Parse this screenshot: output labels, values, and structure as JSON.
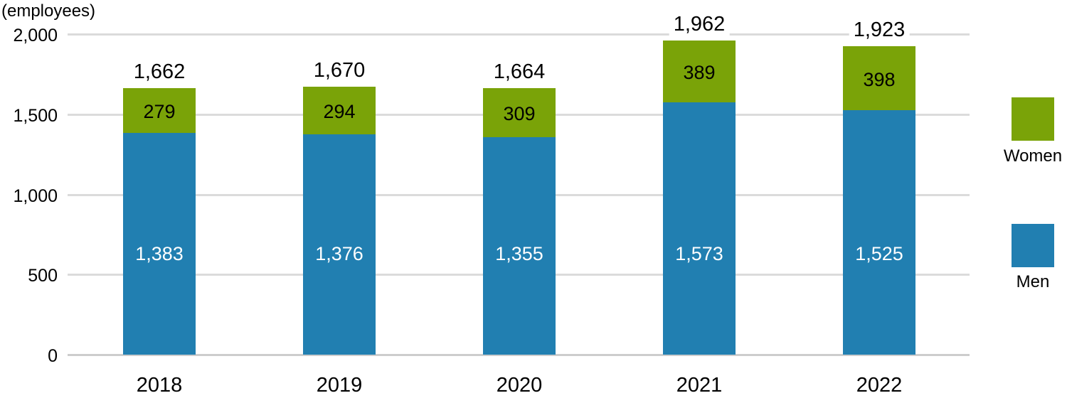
{
  "chart_data": {
    "type": "bar",
    "stacked": true,
    "unit_label": "(employees)",
    "categories": [
      "2018",
      "2019",
      "2020",
      "2021",
      "2022"
    ],
    "series": [
      {
        "name": "Men",
        "color": "#217FB1",
        "values": [
          1383,
          1376,
          1355,
          1573,
          1525
        ],
        "labels": [
          "1,383",
          "1,376",
          "1,355",
          "1,573",
          "1,525"
        ]
      },
      {
        "name": "Women",
        "color": "#7AA308",
        "values": [
          279,
          294,
          309,
          389,
          398
        ],
        "labels": [
          "279",
          "294",
          "309",
          "389",
          "398"
        ]
      }
    ],
    "totals": [
      1662,
      1670,
      1664,
      1962,
      1923
    ],
    "total_labels": [
      "1,662",
      "1,670",
      "1,664",
      "1,962",
      "1,923"
    ],
    "y_axis": {
      "range": [
        0,
        2000
      ],
      "ticks": [
        0,
        500,
        1000,
        1500,
        2000
      ],
      "tick_labels": [
        "0",
        "500",
        "1,000",
        "1,500",
        "2,000"
      ]
    },
    "grid": true,
    "legend_position": "right"
  },
  "legend": {
    "items": [
      {
        "label": "Women",
        "color": "#7AA308"
      },
      {
        "label": "Men",
        "color": "#217FB1"
      }
    ]
  },
  "colors": {
    "gridline": "#DBDBDB",
    "baseline": "#CDCDCD",
    "text": "#000000",
    "bar_label_light": "#FFFFFF"
  }
}
